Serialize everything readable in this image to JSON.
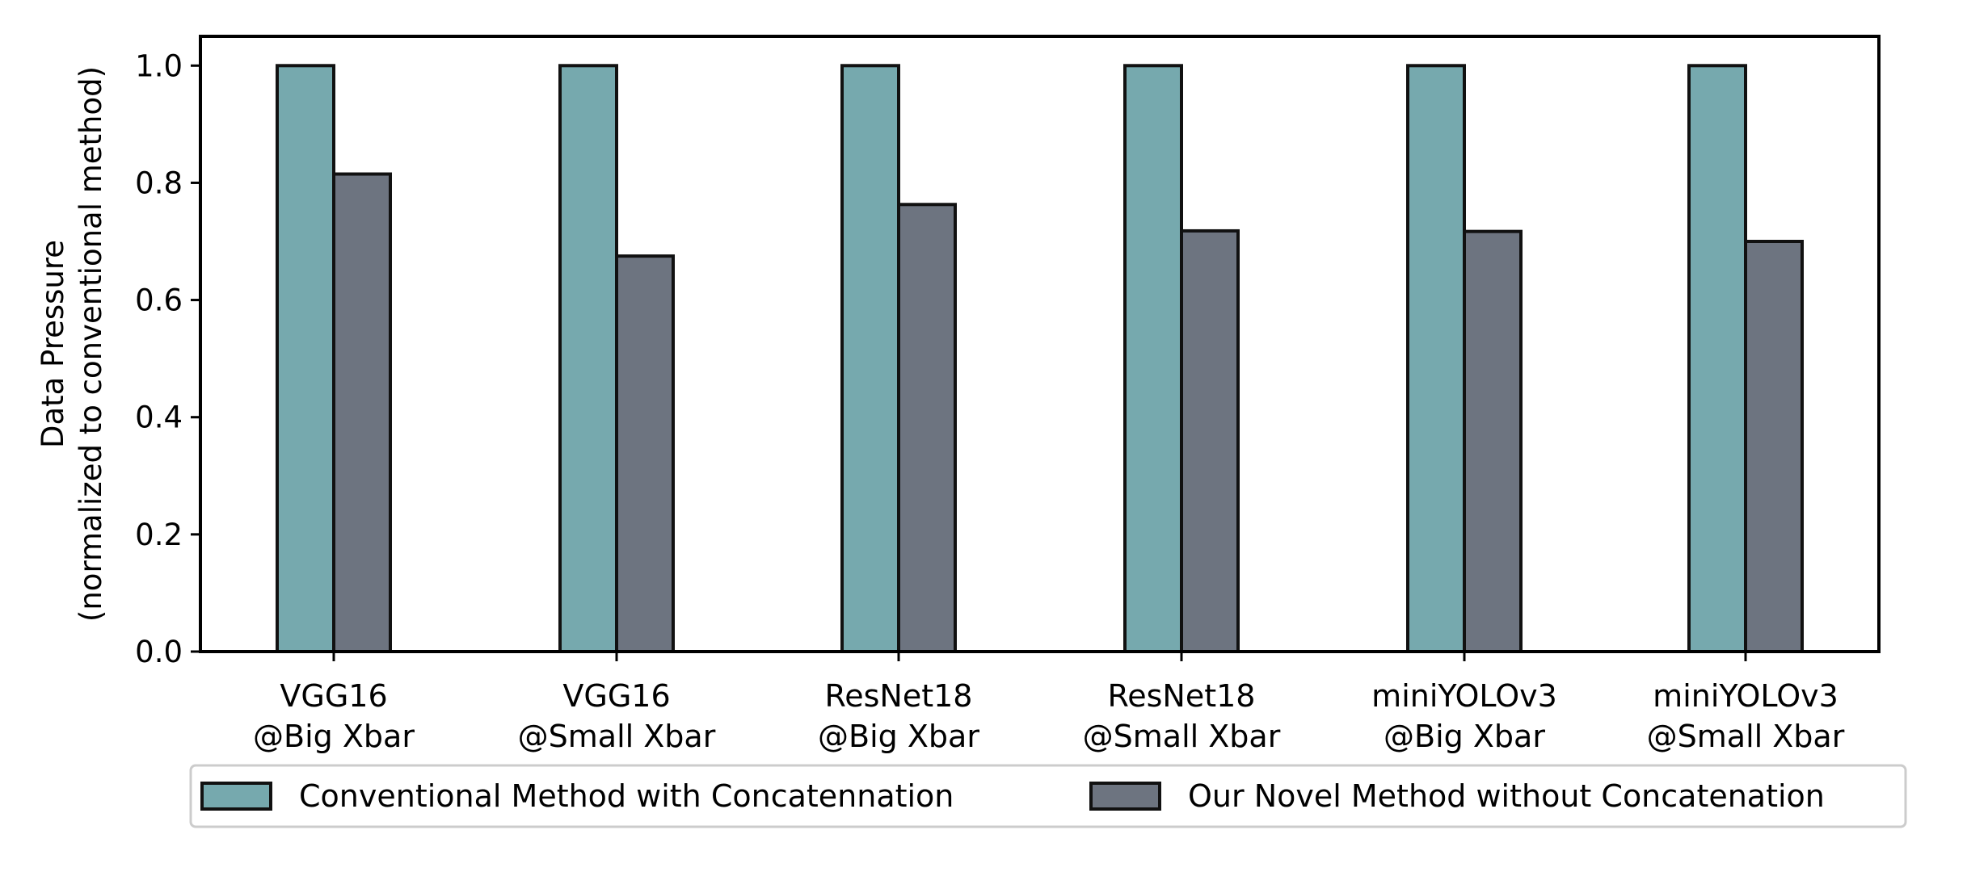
{
  "chart_data": {
    "type": "bar",
    "categories": [
      [
        "VGG16",
        "@Big Xbar"
      ],
      [
        "VGG16",
        "@Small Xbar"
      ],
      [
        "ResNet18",
        "@Big Xbar"
      ],
      [
        "ResNet18",
        "@Small Xbar"
      ],
      [
        "miniYOLOv3",
        "@Big Xbar"
      ],
      [
        "miniYOLOv3",
        "@Small Xbar"
      ]
    ],
    "series": [
      {
        "name": "Conventional Method with Concatennation",
        "color": "#76a9ae",
        "values": [
          1.0,
          1.0,
          1.0,
          1.0,
          1.0,
          1.0
        ]
      },
      {
        "name": "Our Novel Method without Concatenation",
        "color": "#6d7480",
        "values": [
          0.815,
          0.675,
          0.763,
          0.718,
          0.717,
          0.7
        ]
      }
    ],
    "ylabel": [
      "Data Pressure",
      "(normalized to conventional method)"
    ],
    "xlabel": "",
    "ylim": [
      0,
      1.05
    ],
    "yticks": [
      "0.0",
      "0.2",
      "0.4",
      "0.6",
      "0.8",
      "1.0"
    ],
    "grid": false,
    "legend_position": "bottom"
  }
}
